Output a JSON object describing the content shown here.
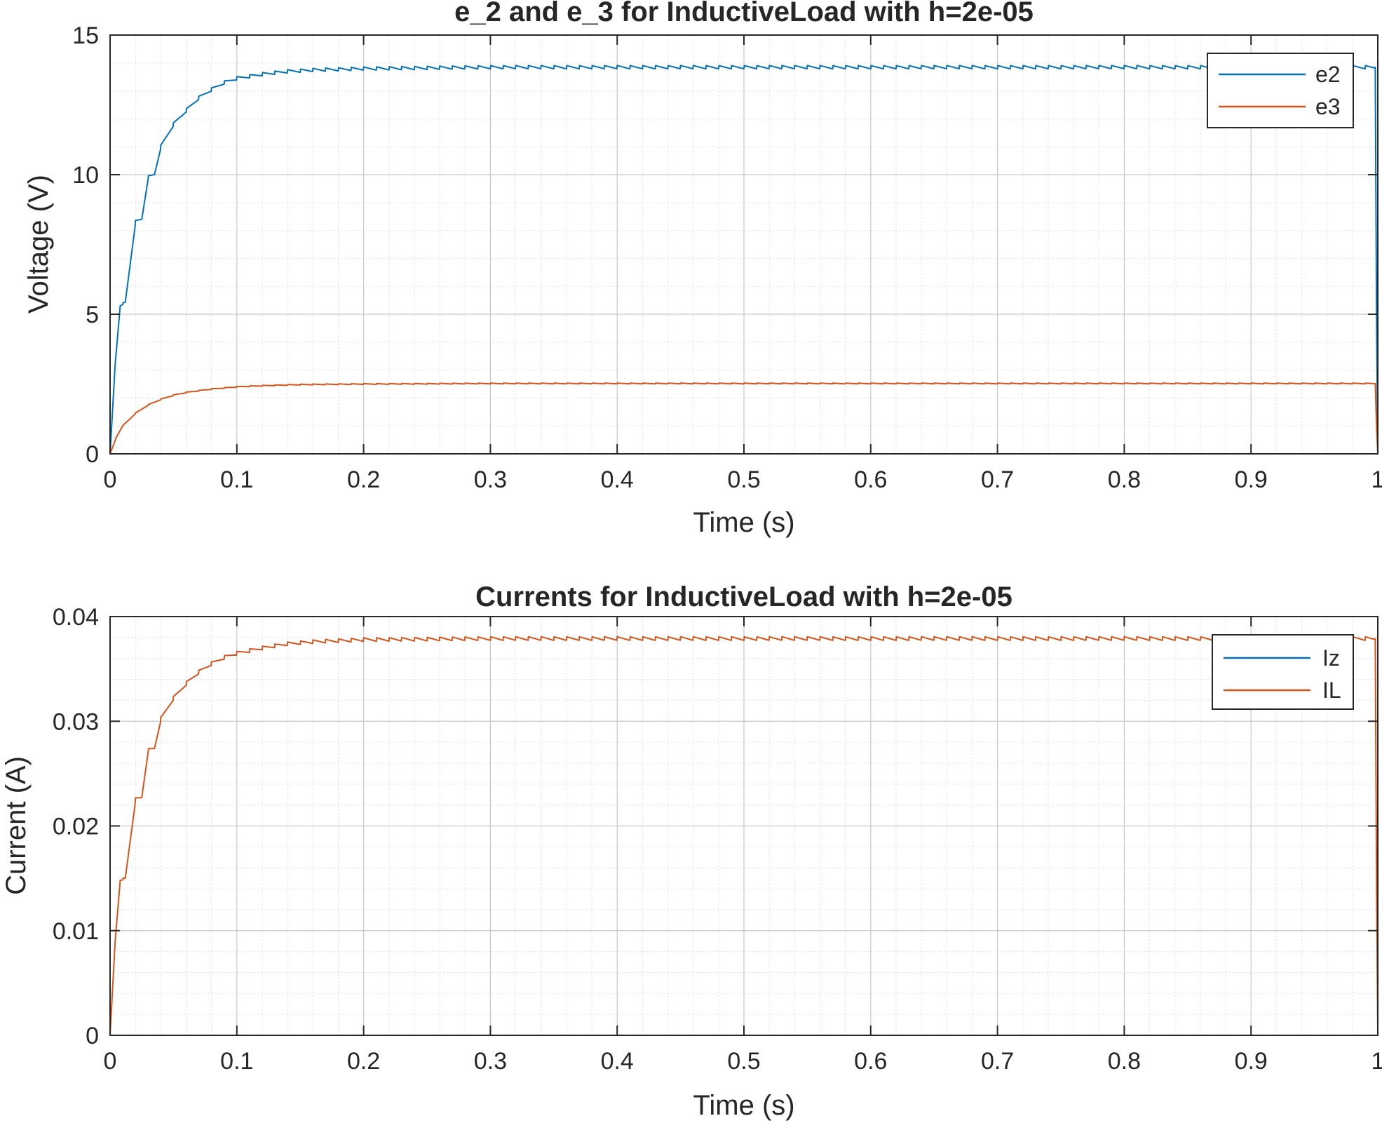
{
  "chart_data": [
    {
      "type": "line",
      "title": "e_2 and e_3 for InductiveLoad with h=2e-05",
      "xlabel": "Time (s)",
      "ylabel": "Voltage (V)",
      "xlim": [
        0,
        1
      ],
      "ylim": [
        0,
        15
      ],
      "xticks": [
        0,
        0.1,
        0.2,
        0.3,
        0.4,
        0.5,
        0.6,
        0.7,
        0.8,
        0.9,
        1
      ],
      "xtick_labels": [
        "0",
        "0.1",
        "0.2",
        "0.3",
        "0.4",
        "0.5",
        "0.6",
        "0.7",
        "0.8",
        "0.9",
        "1"
      ],
      "yticks": [
        0,
        5,
        10,
        15
      ],
      "ytick_labels": [
        "0",
        "5",
        "10",
        "15"
      ],
      "grid": true,
      "minor_grid": true,
      "legend_position": "top-right",
      "series": [
        {
          "name": "e2",
          "color": "#0072BD",
          "x": [
            0,
            0.004,
            0.008,
            0.012,
            0.02,
            0.025,
            0.03,
            0.035,
            0.04,
            0.05,
            0.06,
            0.07,
            0.08,
            0.09,
            0.1,
            0.12,
            0.14,
            0.16,
            0.2,
            0.3,
            0.5,
            0.7,
            0.9,
            0.998,
            0.999,
            1
          ],
          "y": [
            0,
            3.2,
            5.3,
            5.4,
            8.3,
            8.4,
            9.9,
            10.0,
            11.0,
            11.8,
            12.3,
            12.75,
            13.05,
            13.3,
            13.45,
            13.6,
            13.7,
            13.75,
            13.8,
            13.85,
            13.85,
            13.85,
            13.85,
            13.85,
            5,
            0
          ],
          "ripple": 0.12
        },
        {
          "name": "e3",
          "color": "#D95319",
          "x": [
            0,
            0.005,
            0.01,
            0.02,
            0.03,
            0.04,
            0.05,
            0.06,
            0.08,
            0.1,
            0.12,
            0.15,
            0.2,
            0.3,
            0.5,
            0.7,
            0.9,
            0.998,
            0.999,
            1
          ],
          "y": [
            0,
            0.6,
            1.0,
            1.45,
            1.75,
            1.95,
            2.1,
            2.2,
            2.32,
            2.4,
            2.44,
            2.48,
            2.5,
            2.52,
            2.52,
            2.52,
            2.52,
            2.52,
            1.0,
            0
          ],
          "ripple": 0.03
        }
      ]
    },
    {
      "type": "line",
      "title": "Currents for InductiveLoad with h=2e-05",
      "xlabel": "Time (s)",
      "ylabel": "Current (A)",
      "xlim": [
        0,
        1
      ],
      "ylim": [
        0,
        0.04
      ],
      "xticks": [
        0,
        0.1,
        0.2,
        0.3,
        0.4,
        0.5,
        0.6,
        0.7,
        0.8,
        0.9,
        1
      ],
      "xtick_labels": [
        "0",
        "0.1",
        "0.2",
        "0.3",
        "0.4",
        "0.5",
        "0.6",
        "0.7",
        "0.8",
        "0.9",
        "1"
      ],
      "yticks": [
        0,
        0.01,
        0.02,
        0.03,
        0.04
      ],
      "ytick_labels": [
        "0",
        "0.01",
        "0.02",
        "0.03",
        "0.04"
      ],
      "grid": true,
      "minor_grid": true,
      "legend_position": "top-right",
      "series": [
        {
          "name": "Iz",
          "color": "#0072BD",
          "x": [
            0,
            1
          ],
          "y": [
            0,
            0
          ],
          "ripple": 0
        },
        {
          "name": "IL",
          "color": "#D95319",
          "x": [
            0,
            0.004,
            0.008,
            0.012,
            0.02,
            0.025,
            0.03,
            0.035,
            0.04,
            0.05,
            0.06,
            0.07,
            0.08,
            0.09,
            0.1,
            0.12,
            0.14,
            0.16,
            0.2,
            0.3,
            0.5,
            0.7,
            0.9,
            0.998,
            0.999,
            1
          ],
          "y": [
            0,
            0.009,
            0.0148,
            0.0149,
            0.0225,
            0.0227,
            0.0272,
            0.0274,
            0.0302,
            0.0322,
            0.0336,
            0.0347,
            0.0355,
            0.0361,
            0.0365,
            0.037,
            0.0374,
            0.0376,
            0.0378,
            0.0379,
            0.0379,
            0.0379,
            0.0379,
            0.0379,
            0.015,
            0
          ],
          "ripple": 0.00035
        }
      ]
    }
  ]
}
